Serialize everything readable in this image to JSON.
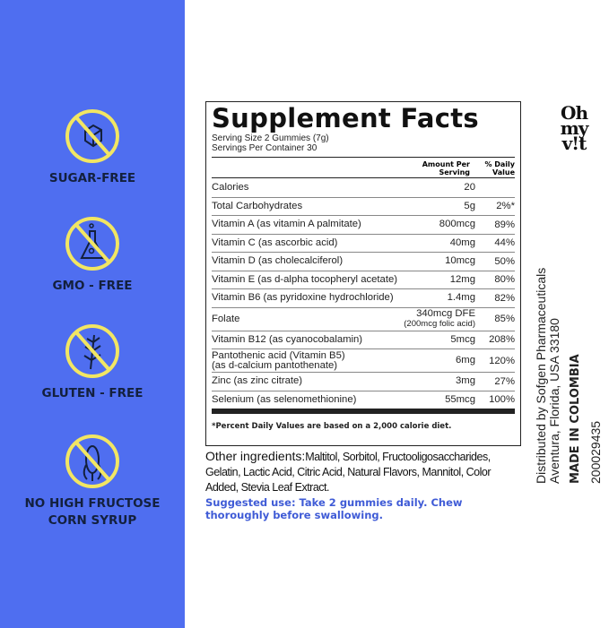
{
  "colors": {
    "panel": "#4f6ef0",
    "ring": "#f2e663",
    "icon": "#13203d",
    "suggested": "#3f5bd6"
  },
  "badges": [
    {
      "icon": "sugar-cube-icon",
      "label": "SUGAR-FREE",
      "label2": ""
    },
    {
      "icon": "flask-icon",
      "label": "GMO - FREE",
      "label2": ""
    },
    {
      "icon": "wheat-icon",
      "label": "GLUTEN - FREE",
      "label2": ""
    },
    {
      "icon": "corn-icon",
      "label": "NO HIGH FRUCTOSE",
      "label2": "CORN SYRUP"
    }
  ],
  "facts": {
    "title": "Supplement Facts",
    "serving_size": "Serving Size 2 Gummies (7g)",
    "servings": "Servings Per Container 30",
    "col_amount": "Amount Per Serving",
    "col_dv": "% Daily Value",
    "rows": [
      {
        "name": "Calories",
        "sub": "",
        "amount": "20",
        "amount_sub": "",
        "dv": ""
      },
      {
        "name": "Total Carbohydrates",
        "sub": "",
        "amount": "5g",
        "amount_sub": "",
        "dv": "2%*"
      },
      {
        "name": "Vitamin A (as vitamin A palmitate)",
        "sub": "",
        "amount": "800mcg",
        "amount_sub": "",
        "dv": "89%"
      },
      {
        "name": "Vitamin C (as ascorbic acid)",
        "sub": "",
        "amount": "40mg",
        "amount_sub": "",
        "dv": "44%"
      },
      {
        "name": "Vitamin D (as cholecalciferol)",
        "sub": "",
        "amount": "10mcg",
        "amount_sub": "",
        "dv": "50%"
      },
      {
        "name": "Vitamin E (as d-alpha tocopheryl acetate)",
        "sub": "",
        "amount": "12mg",
        "amount_sub": "",
        "dv": "80%"
      },
      {
        "name": "Vitamin B6 (as pyridoxine hydrochloride)",
        "sub": "",
        "amount": "1.4mg",
        "amount_sub": "",
        "dv": "82%"
      },
      {
        "name": "Folate",
        "sub": "",
        "amount": "340mcg DFE",
        "amount_sub": "(200mcg folic acid)",
        "dv": "85%"
      },
      {
        "name": "Vitamin B12 (as cyanocobalamin)",
        "sub": "",
        "amount": "5mcg",
        "amount_sub": "",
        "dv": "208%"
      },
      {
        "name": "Pantothenic acid (Vitamin B5)",
        "sub": "(as d-calcium pantothenate)",
        "amount": "6mg",
        "amount_sub": "",
        "dv": "120%"
      },
      {
        "name": "Zinc (as zinc citrate)",
        "sub": "",
        "amount": "3mg",
        "amount_sub": "",
        "dv": "27%"
      },
      {
        "name": "Selenium (as selenomethionine)",
        "sub": "",
        "amount": "55mcg",
        "amount_sub": "",
        "dv": "100%"
      }
    ],
    "footnote": "*Percent Daily Values are based on a 2,000 calorie diet."
  },
  "ingredients": {
    "label": "Other ingredients:",
    "text": "Maltitol, Sorbitol, Fructooligosaccharides, Gelatin, Lactic Acid, Citric Acid,  Natural Flavors, Mannitol, Color Added,  Stevia Leaf Extract."
  },
  "suggested_use": "Suggested use: Take 2 gummies daily. Chew thoroughly before swallowing.",
  "logo": "Oh my v!t",
  "side": {
    "line1": "Distributed by Sofgen Pharmaceuticals",
    "line2": "Aventura, Florida, USA  33180",
    "made_in": "MADE IN COLOMBIA",
    "code": "200029435"
  }
}
